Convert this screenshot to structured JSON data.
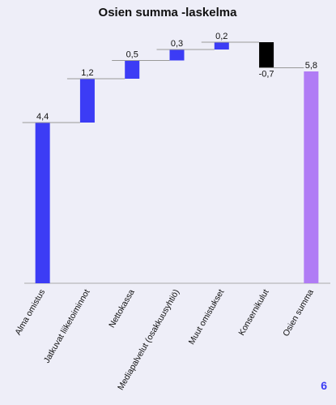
{
  "chart_data": {
    "type": "waterfall",
    "title": "Osien summa -laskelma",
    "categories": [
      "Alma omistus",
      "Jatkuvat liiketoiminnot",
      "Nettokassa",
      "Mediapalvelut (osakkuusyhtiö)",
      "Muut omistukset",
      "Konsernikulut",
      "Osien summa"
    ],
    "values": [
      4.4,
      1.2,
      0.5,
      0.3,
      0.2,
      -0.7,
      5.8
    ],
    "value_labels": [
      "4,4",
      "1,2",
      "0,5",
      "0,3",
      "0,2",
      "-0,7",
      "5,8"
    ],
    "is_total": [
      false,
      false,
      false,
      false,
      false,
      false,
      true
    ],
    "colors": [
      "#3c3cf5",
      "#3c3cf5",
      "#3c3cf5",
      "#3c3cf5",
      "#3c3cf5",
      "#000000",
      "#b07cf5"
    ],
    "ylim": [
      0,
      7
    ]
  },
  "page_number": "6"
}
